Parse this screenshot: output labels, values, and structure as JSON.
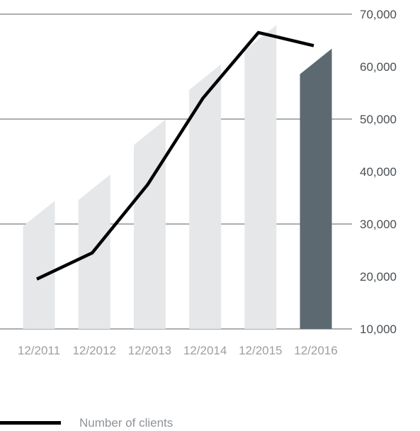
{
  "chart_data": {
    "type": "bar",
    "categories": [
      "12/2011",
      "12/2012",
      "12/2013",
      "12/2014",
      "12/2015",
      "12/2016"
    ],
    "series": [
      {
        "kind": "bar",
        "values": [
          32000,
          37000,
          47500,
          58000,
          65500,
          61000
        ],
        "colors": [
          "#e5e7e9",
          "#e5e7e9",
          "#e5e7e9",
          "#e5e7e9",
          "#e5e7e9",
          "#5c6970"
        ]
      },
      {
        "kind": "line",
        "name": "Number of clients",
        "values": [
          19500,
          24500,
          37500,
          54000,
          66500,
          64000
        ],
        "color": "#000000"
      }
    ],
    "ylim": [
      10000,
      70000
    ],
    "yticks": [
      "10,000",
      "20,000",
      "30,000",
      "40,000",
      "50,000",
      "60,000",
      "70,000"
    ],
    "ytick_values": [
      10000,
      20000,
      30000,
      40000,
      50000,
      60000,
      70000
    ],
    "grid_values": [
      10000,
      30000,
      50000,
      70000
    ],
    "grid": true,
    "legend_position": "bottom-left"
  },
  "legend": {
    "label": "Number of clients"
  }
}
